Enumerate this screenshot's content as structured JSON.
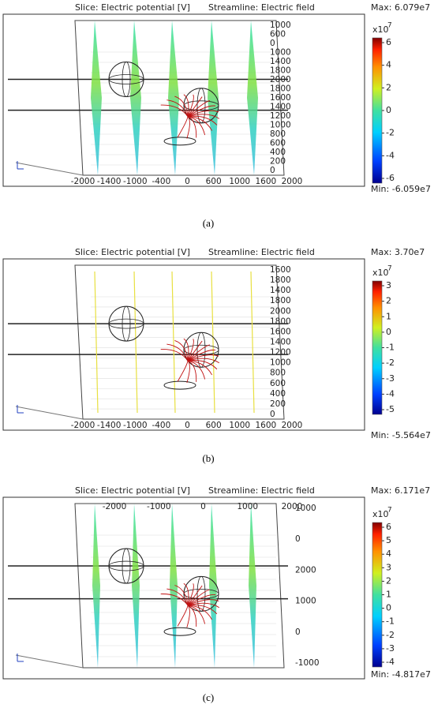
{
  "panels": [
    {
      "title_left": "Slice: Electric potential [V]",
      "title_right": "Streamline: Electric field",
      "max": "Max: 6.079e7",
      "min": "Min: -6.059e7",
      "colorbar": {
        "base": "x10",
        "exponent": "7",
        "ticks": [
          "6",
          "4",
          "2",
          "0",
          "-2",
          "-4",
          "-6"
        ]
      },
      "axis_bottom": [
        "-2000",
        "-1400",
        "-1000",
        "-400",
        "0",
        "600",
        "1000",
        "1600",
        "2000"
      ],
      "axis_right": [
        "1000",
        "600",
        "0",
        "1000",
        "1400",
        "1800",
        "2000",
        "1800",
        "1600",
        "1400",
        "1200",
        "1000",
        "800",
        "600",
        "400",
        "200",
        "0"
      ],
      "axis_top": [],
      "caption": "(a)"
    },
    {
      "title_left": "Slice: Electric potential [V]",
      "title_right": "Streamline: Electric field",
      "max": "Max: 3.70e7",
      "min": "Min: -5.564e7",
      "colorbar": {
        "base": "x10",
        "exponent": "7",
        "ticks": [
          "3",
          "2",
          "1",
          "0",
          "-1",
          "-2",
          "-3",
          "-4",
          "-5"
        ]
      },
      "axis_bottom": [
        "-2000",
        "-1400",
        "-1000",
        "-400",
        "0",
        "600",
        "1000",
        "1600",
        "2000"
      ],
      "axis_right": [
        "1600",
        "1800",
        "1400",
        "1800",
        "2000",
        "1800",
        "1600",
        "1400",
        "1200",
        "1000",
        "800",
        "600",
        "400",
        "200",
        "0"
      ],
      "axis_top": [],
      "caption": "(b)"
    },
    {
      "title_left": "Slice: Electric potential [V]",
      "title_right": "Streamline: Electric field",
      "max": "Max: 6.171e7",
      "min": "Min: -4.817e7",
      "colorbar": {
        "base": "x10",
        "exponent": "7",
        "ticks": [
          "6",
          "5",
          "4",
          "3",
          "2",
          "1",
          "0",
          "-1",
          "-2",
          "-3",
          "-4"
        ]
      },
      "axis_bottom": [],
      "axis_right": [
        "1000",
        "0",
        "2000",
        "1000",
        "0",
        "-1000"
      ],
      "axis_top": [
        "-2000",
        "-1000",
        "0",
        "1000",
        "2000"
      ],
      "caption": "(c)"
    }
  ]
}
